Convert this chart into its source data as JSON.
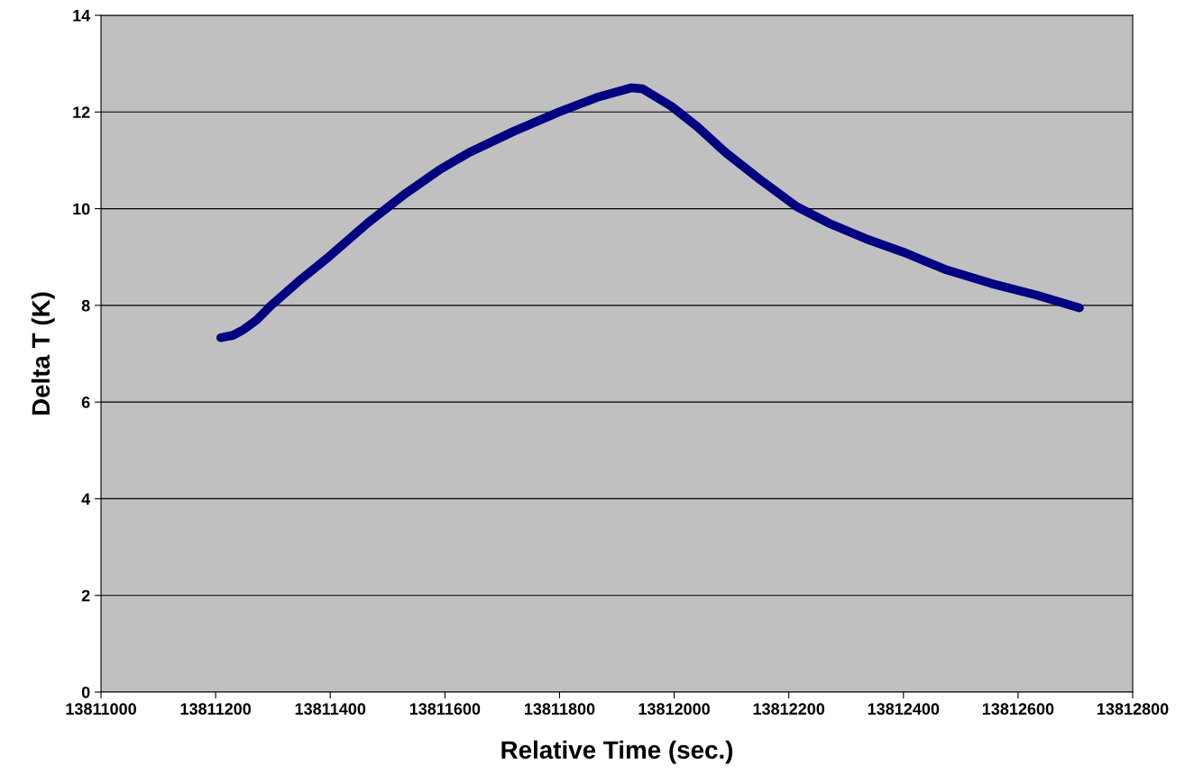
{
  "chart_data": {
    "type": "line",
    "xlabel": "Relative Time (sec.)",
    "ylabel": "Delta T (K)",
    "x": [
      13811209,
      13811230,
      13811249,
      13811272,
      13811296,
      13811345,
      13811398,
      13811465,
      13811532,
      13811590,
      13811642,
      13811720,
      13811799,
      13811865,
      13811925,
      13811945,
      13811995,
      13812040,
      13812090,
      13812150,
      13812214,
      13812270,
      13812334,
      13812400,
      13812476,
      13812554,
      13812633,
      13812707
    ],
    "series": [
      {
        "color": "#000080",
        "values": [
          7.33,
          7.38,
          7.5,
          7.7,
          7.99,
          8.5,
          9.01,
          9.7,
          10.32,
          10.8,
          11.16,
          11.6,
          12.0,
          12.3,
          12.5,
          12.48,
          12.12,
          11.7,
          11.16,
          10.6,
          10.04,
          9.7,
          9.38,
          9.1,
          8.73,
          8.45,
          8.21,
          7.95
        ]
      }
    ],
    "xlim": [
      13811000,
      13812800
    ],
    "xticks": [
      13811000,
      13811200,
      13811400,
      13811600,
      13811800,
      13812000,
      13812200,
      13812400,
      13812600,
      13812800
    ],
    "ylim": [
      0,
      14
    ],
    "yticks": [
      0,
      2,
      4,
      6,
      8,
      10,
      12,
      14
    ],
    "grid": "y",
    "legend": false,
    "marker": "none",
    "line_style": "solid"
  }
}
